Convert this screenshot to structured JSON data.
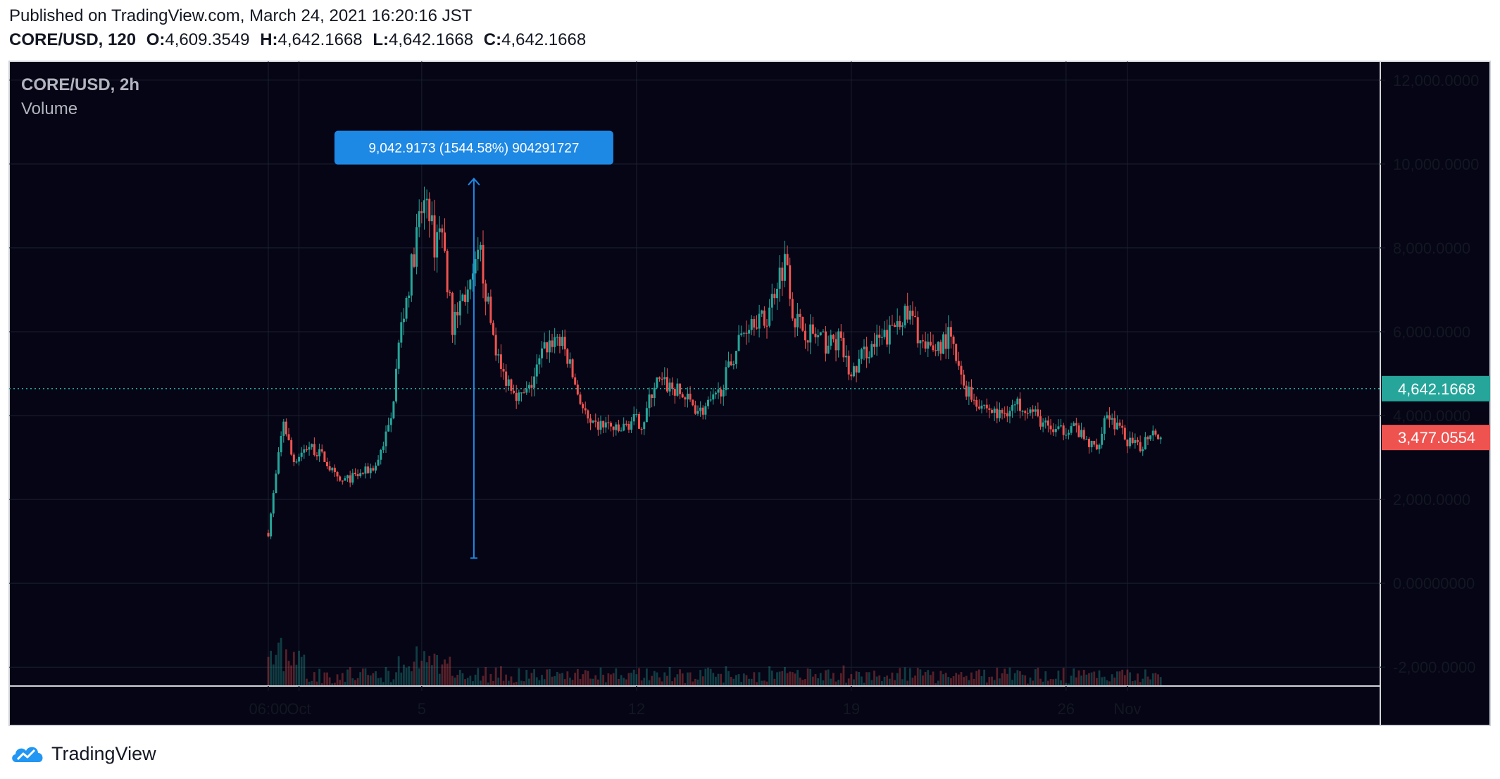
{
  "header": {
    "published": "Published on TradingView.com, March 24, 2021 16:20:16 JST",
    "symbol_interval": "CORE/USD, 120",
    "o_label": "O:",
    "o_value": "4,609.3549",
    "h_label": "H:",
    "h_value": "4,642.1668",
    "l_label": "L:",
    "l_value": "4,642.1668",
    "c_label": "C:",
    "c_value": "4,642.1668"
  },
  "legend": {
    "title": "CORE/USD, 2h",
    "indicator": "Volume"
  },
  "measure": {
    "label": "9,042.9173 (1544.58%) 904291727",
    "from": 600,
    "to": 9650,
    "x_day": 6.7
  },
  "footer": {
    "brand": "TradingView"
  },
  "colors": {
    "background": "#050515",
    "grid": "#1c2030",
    "up": "#26a69a",
    "down": "#ef5350",
    "text": "#b2b5be",
    "measure": "#1e88e5",
    "last_price": "#26a69a",
    "current_price": "#ef5350"
  },
  "chart_data": {
    "type": "candlestick",
    "title": "CORE/USD, 2h",
    "series": [
      {
        "name": "CORE/USD",
        "interval": "2h",
        "path": [
          [
            0,
            1200
          ],
          [
            0.2,
            2300
          ],
          [
            0.5,
            3900
          ],
          [
            0.8,
            2900
          ],
          [
            1.3,
            3300
          ],
          [
            1.8,
            3000
          ],
          [
            2.3,
            2400
          ],
          [
            3,
            2600
          ],
          [
            3.5,
            2800
          ],
          [
            4,
            3900
          ],
          [
            4.3,
            6000
          ],
          [
            4.6,
            7200
          ],
          [
            4.9,
            8600
          ],
          [
            5.2,
            9300
          ],
          [
            5.4,
            8000
          ],
          [
            5.6,
            8700
          ],
          [
            5.8,
            7500
          ],
          [
            6,
            6100
          ],
          [
            6.3,
            6800
          ],
          [
            6.6,
            7000
          ],
          [
            6.9,
            7900
          ],
          [
            7.2,
            6400
          ],
          [
            7.6,
            5000
          ],
          [
            7.9,
            4800
          ],
          [
            8.2,
            4400
          ],
          [
            8.5,
            4600
          ],
          [
            9,
            5600
          ],
          [
            9.4,
            5900
          ],
          [
            9.7,
            5500
          ],
          [
            10.1,
            4500
          ],
          [
            10.5,
            3700
          ],
          [
            11,
            3800
          ],
          [
            11.4,
            3600
          ],
          [
            11.9,
            3900
          ],
          [
            12.2,
            3800
          ],
          [
            12.6,
            4800
          ],
          [
            13.1,
            4700
          ],
          [
            13.6,
            4400
          ],
          [
            14.1,
            4100
          ],
          [
            14.6,
            4400
          ],
          [
            15,
            5100
          ],
          [
            15.4,
            5900
          ],
          [
            15.8,
            6400
          ],
          [
            16.2,
            6200
          ],
          [
            16.6,
            7300
          ],
          [
            16.9,
            7800
          ],
          [
            17.1,
            6400
          ],
          [
            17.4,
            6100
          ],
          [
            17.8,
            5900
          ],
          [
            18.2,
            5700
          ],
          [
            18.6,
            5800
          ],
          [
            19,
            4900
          ],
          [
            19.4,
            5500
          ],
          [
            19.8,
            5700
          ],
          [
            20.2,
            5900
          ],
          [
            20.6,
            6400
          ],
          [
            21,
            6300
          ],
          [
            21.4,
            5500
          ],
          [
            21.9,
            5700
          ],
          [
            22.2,
            5900
          ],
          [
            22.6,
            4800
          ],
          [
            23,
            4400
          ],
          [
            23.4,
            4200
          ],
          [
            23.8,
            4000
          ],
          [
            24.2,
            4200
          ],
          [
            24.6,
            4300
          ],
          [
            25,
            4000
          ],
          [
            25.4,
            3700
          ],
          [
            25.8,
            3600
          ],
          [
            26.2,
            3800
          ],
          [
            26.6,
            3400
          ],
          [
            27,
            3200
          ],
          [
            27.3,
            4100
          ],
          [
            27.6,
            3800
          ],
          [
            28,
            3400
          ],
          [
            28.4,
            3200
          ],
          [
            28.8,
            3700
          ],
          [
            29.1,
            3500
          ]
        ],
        "last": 3477.0554
      }
    ],
    "x_ticks": [
      {
        "label": "06:00",
        "day": 0
      },
      {
        "label": "Oct",
        "day": 1
      },
      {
        "label": "5",
        "day": 5
      },
      {
        "label": "12",
        "day": 12
      },
      {
        "label": "19",
        "day": 19
      },
      {
        "label": "26",
        "day": 26
      },
      {
        "label": "Nov",
        "day": 28
      }
    ],
    "y_ticks": [
      "12,000.0000",
      "10,000.0000",
      "8,000.0000",
      "6,000.0000",
      "4,000.0000",
      "2,000.0000",
      "0.00000000",
      "-2,000.0000"
    ],
    "y_tick_values": [
      12000,
      10000,
      8000,
      6000,
      4000,
      2000,
      0,
      -2000
    ],
    "ylim": [
      -2450,
      12450
    ],
    "last_price_label": "4,642.1668",
    "last_price_value": 4642.1668,
    "current_price_label": "3,477.0554",
    "current_price_value": 3477.0554,
    "indicator": "Volume",
    "grid": true,
    "legend": "top-left"
  }
}
